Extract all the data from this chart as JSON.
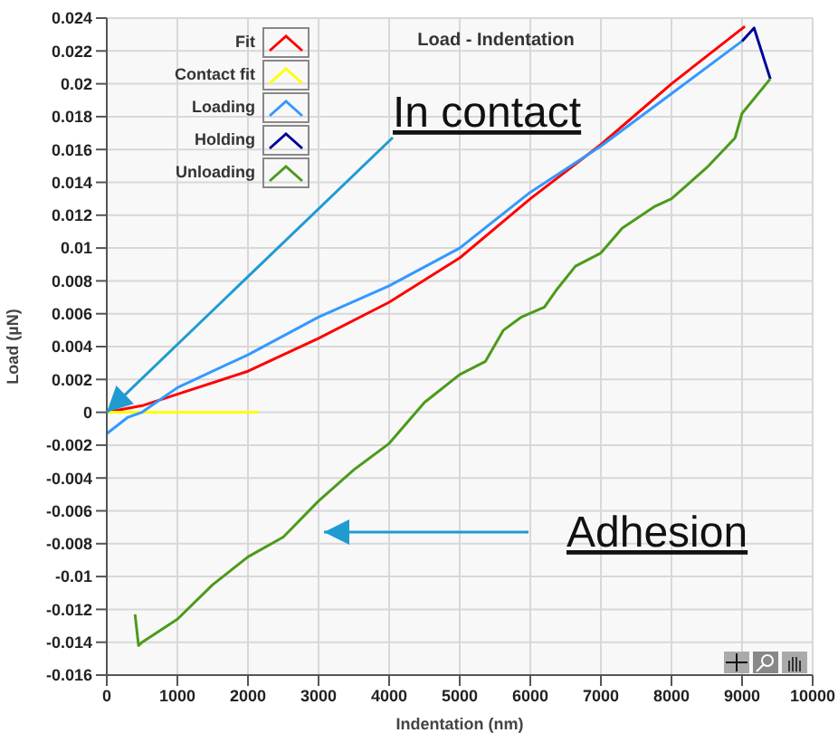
{
  "chart_data": {
    "type": "line",
    "title": "Load - Indentation",
    "xlabel": "Indentation (nm)",
    "ylabel": "Load (µN)",
    "xlim": [
      0,
      10000
    ],
    "xticks": [
      0,
      1000,
      2000,
      3000,
      4000,
      5000,
      6000,
      7000,
      8000,
      9000,
      10000
    ],
    "ylim": [
      -0.016,
      0.024
    ],
    "yticks": [
      -0.016,
      -0.014,
      -0.012,
      -0.01,
      -0.008,
      -0.006,
      -0.004,
      -0.002,
      0,
      0.002,
      0.004,
      0.006,
      0.008,
      0.01,
      0.012,
      0.014,
      0.016,
      0.018,
      0.02,
      0.022,
      0.024
    ],
    "grid": true,
    "legend": "top left",
    "annotations": [
      {
        "text": "In contact",
        "x": 0,
        "y": 0
      },
      "Adhesion"
    ],
    "series": [
      {
        "name": "Fit",
        "color": "#ff0000",
        "x": [
          0,
          500,
          1000,
          2000,
          3000,
          4000,
          5000,
          6000,
          7000,
          8000,
          9040
        ],
        "values": [
          0,
          0.0004,
          0.0011,
          0.0025,
          0.0045,
          0.0067,
          0.0094,
          0.013,
          0.0163,
          0.02,
          0.0235
        ]
      },
      {
        "name": "Contact fit",
        "color": "#ffff00",
        "x": [
          0,
          2150
        ],
        "values": [
          0,
          0
        ]
      },
      {
        "name": "Loading",
        "color": "#3399ff",
        "x": [
          0,
          300,
          500,
          1000,
          2000,
          3000,
          4000,
          5000,
          6000,
          7000,
          8000,
          9000
        ],
        "values": [
          -0.0013,
          -0.0003,
          0,
          0.0015,
          0.0035,
          0.0058,
          0.0077,
          0.01,
          0.0134,
          0.0162,
          0.0194,
          0.0226
        ]
      },
      {
        "name": "Holding",
        "color": "#000099",
        "x": [
          9000,
          9170,
          9400
        ],
        "values": [
          0.0226,
          0.0234,
          0.0203
        ]
      },
      {
        "name": "Unloading",
        "color": "#4c9a1a",
        "x": [
          9400,
          9000,
          8900,
          8500,
          8000,
          7750,
          7300,
          7000,
          6640,
          6380,
          6200,
          5875,
          5620,
          5365,
          5000,
          4500,
          4000,
          3500,
          3000,
          2500,
          2000,
          1500,
          1000,
          500,
          450,
          400
        ],
        "values": [
          0.0203,
          0.0182,
          0.0167,
          0.0149,
          0.013,
          0.0125,
          0.0112,
          0.0097,
          0.0089,
          0.0075,
          0.0064,
          0.0058,
          0.005,
          0.0031,
          0.0023,
          0.0006,
          -0.0019,
          -0.0035,
          -0.0054,
          -0.0076,
          -0.0088,
          -0.0105,
          -0.0126,
          -0.014,
          -0.0142,
          -0.0123
        ]
      }
    ]
  }
}
